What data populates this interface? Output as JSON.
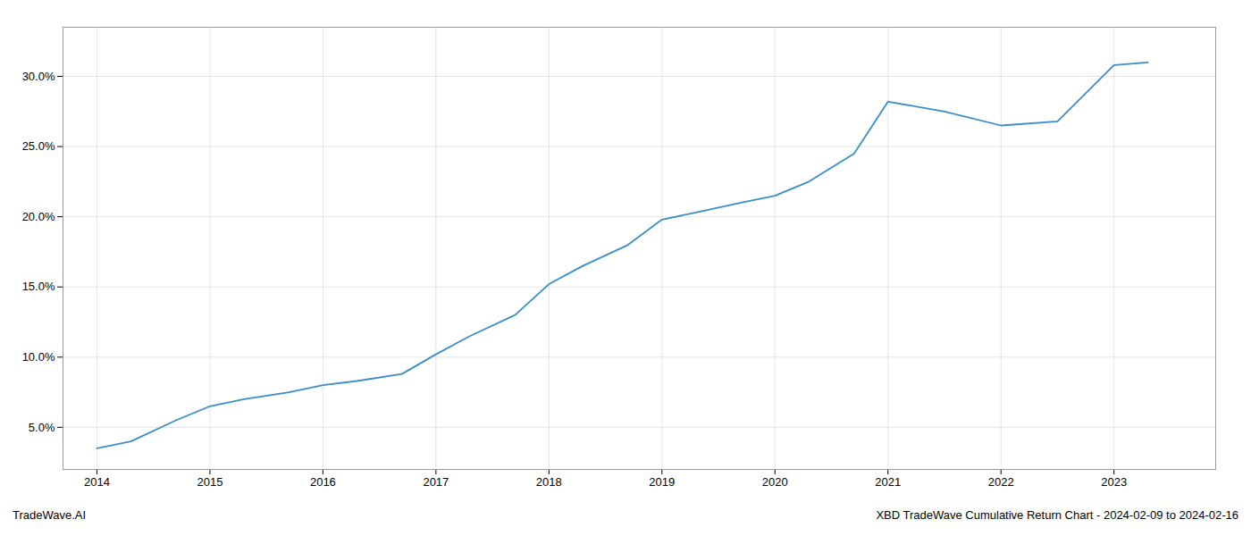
{
  "chart_data": {
    "type": "line",
    "x": [
      2014,
      2014.3,
      2014.7,
      2015,
      2015.3,
      2015.7,
      2016,
      2016.3,
      2016.7,
      2017,
      2017.3,
      2017.7,
      2018,
      2018.3,
      2018.7,
      2019,
      2019.3,
      2019.7,
      2020,
      2020.3,
      2020.7,
      2021,
      2021.5,
      2022,
      2022.5,
      2023,
      2023.3
    ],
    "values": [
      3.5,
      4.0,
      5.5,
      6.5,
      7.0,
      7.5,
      8.0,
      8.3,
      8.8,
      10.2,
      11.5,
      13.0,
      15.2,
      16.5,
      18.0,
      19.8,
      20.3,
      21.0,
      21.5,
      22.5,
      24.5,
      28.2,
      27.5,
      26.5,
      26.8,
      30.8,
      31.0
    ],
    "color": "#3a8dc5",
    "xlim": [
      2013.7,
      2023.9
    ],
    "xticks": [
      2014,
      2015,
      2016,
      2017,
      2018,
      2019,
      2020,
      2021,
      2022,
      2023
    ],
    "ylim": [
      2.0,
      33.5
    ],
    "yticks": [
      {
        "value": 5.0,
        "label": "5.0%"
      },
      {
        "value": 10.0,
        "label": "10.0%"
      },
      {
        "value": 15.0,
        "label": "15.0%"
      },
      {
        "value": 20.0,
        "label": "20.0%"
      },
      {
        "value": 25.0,
        "label": "25.0%"
      },
      {
        "value": 30.0,
        "label": "30.0%"
      }
    ],
    "grid": true,
    "annotations": [
      "TradeWave.AI",
      "XBD TradeWave Cumulative Return Chart - 2024-02-09 to 2024-02-16"
    ]
  }
}
